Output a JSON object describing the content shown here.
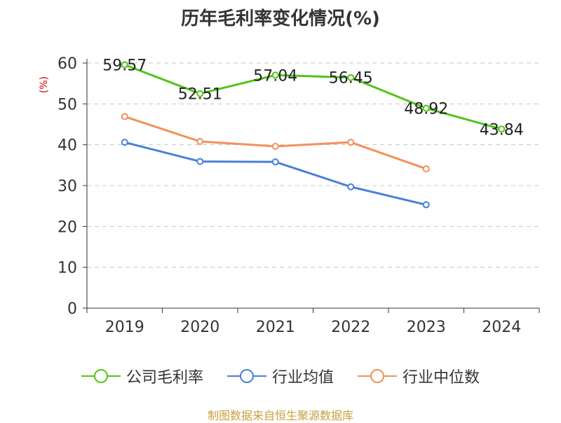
{
  "chart_data": {
    "type": "line",
    "title": "历年毛利率变化情况(%)",
    "ylabel": "(%)",
    "xlabel": "",
    "categories": [
      "2019",
      "2020",
      "2021",
      "2022",
      "2023",
      "2024"
    ],
    "ylim": [
      0,
      60
    ],
    "yticks": [
      0,
      10,
      20,
      30,
      40,
      50,
      60
    ],
    "grid": true,
    "legend_position": "bottom",
    "series": [
      {
        "name": "公司毛利率",
        "color": "#52c41a",
        "values": [
          59.57,
          52.51,
          57.04,
          56.45,
          48.92,
          43.84
        ],
        "labels": [
          "59.57",
          "52.51",
          "57.04",
          "56.45",
          "48.92",
          "43.84"
        ]
      },
      {
        "name": "行业均值",
        "color": "#4a7fdc",
        "values": [
          40.6,
          35.9,
          35.8,
          29.7,
          25.3,
          null
        ]
      },
      {
        "name": "行业中位数",
        "color": "#f4905a",
        "values": [
          46.9,
          40.8,
          39.6,
          40.6,
          34.1,
          null
        ]
      }
    ]
  },
  "source": "制图数据来自恒生聚源数据库"
}
